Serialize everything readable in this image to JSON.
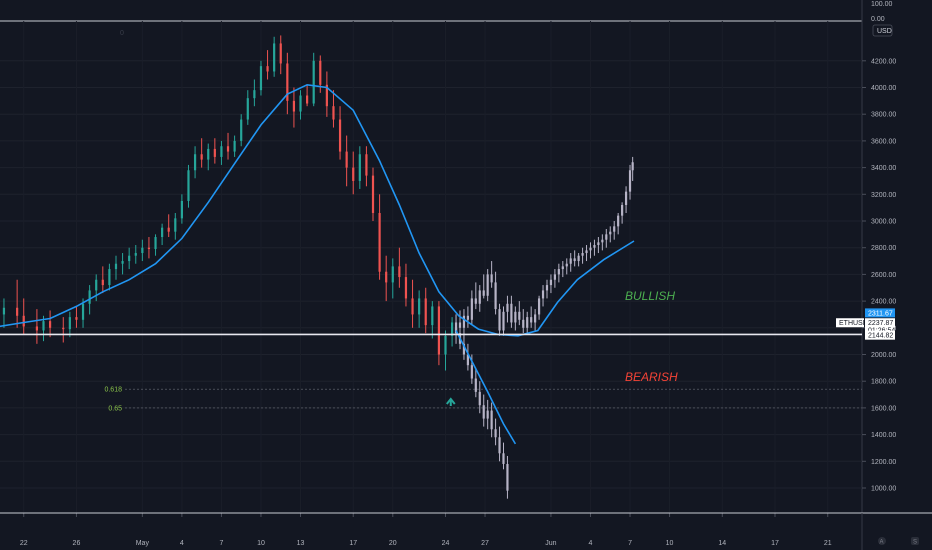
{
  "chart_data": {
    "type": "candlestick",
    "symbol": "ETHUSD",
    "currency": "USD",
    "ylim": [
      860,
      4480
    ],
    "y_ticks": [
      "1000.00",
      "1200.00",
      "1400.00",
      "1600.00",
      "1800.00",
      "2000.00",
      "2200.00",
      "2400.00",
      "2600.00",
      "2800.00",
      "3000.00",
      "3200.00",
      "3400.00",
      "3600.00",
      "3800.00",
      "4000.00",
      "4200.00"
    ],
    "y_ticks_values": [
      1000,
      1200,
      1400,
      1600,
      1800,
      2000,
      2200,
      2400,
      2600,
      2800,
      3000,
      3200,
      3400,
      3600,
      3800,
      4000,
      4200
    ],
    "top_pane_ticks": [
      "100.00",
      "0.00"
    ],
    "x_ticks": [
      "22",
      "26",
      "May",
      "4",
      "7",
      "10",
      "13",
      "17",
      "20",
      "24",
      "27",
      "Jun",
      "4",
      "7",
      "10",
      "14",
      "17",
      "21"
    ],
    "x_tick_days": [
      -9,
      -5,
      0,
      3,
      6,
      9,
      12,
      16,
      19,
      23,
      26,
      31,
      34,
      37,
      40,
      44,
      48,
      52
    ],
    "x_range_days": [
      -10.8,
      54.6
    ],
    "price_line": 2150,
    "price_labels": {
      "ma": "2311.67",
      "symbol": "ETHUSD",
      "last": "2237.87",
      "countdown": "01:26:54",
      "level": "2144.82"
    },
    "fib_levels": [
      {
        "label": "0.618",
        "value": 1740
      },
      {
        "label": "0.65",
        "value": 1600
      }
    ],
    "annotations": {
      "bullish": "BULLISH",
      "bearish": "BEARISH"
    },
    "top_pane_zero": "0",
    "colors": {
      "up": "#26a69a",
      "down": "#ef5350",
      "projection": "#b7b4c7",
      "ma": "#2196f3",
      "bullish": "#4caf50",
      "bearish": "#f44336",
      "arrow": "#26a69a",
      "background": "#131722"
    },
    "ohlc_daily": [
      [
        -11.5,
        2210,
        2360,
        2080,
        2300
      ],
      [
        -10.5,
        2300,
        2420,
        2200,
        2350
      ],
      [
        -9.5,
        2350,
        2560,
        2200,
        2290
      ],
      [
        -9,
        2290,
        2420,
        2150,
        2210
      ],
      [
        -8,
        2210,
        2340,
        2080,
        2180
      ],
      [
        -7.5,
        2180,
        2290,
        2100,
        2250
      ],
      [
        -7,
        2250,
        2330,
        2130,
        2200
      ],
      [
        -6,
        2200,
        2280,
        2090,
        2190
      ],
      [
        -5.5,
        2190,
        2320,
        2130,
        2280
      ],
      [
        -5,
        2280,
        2360,
        2200,
        2260
      ],
      [
        -4.5,
        2260,
        2420,
        2200,
        2380
      ],
      [
        -4,
        2380,
        2520,
        2300,
        2480
      ],
      [
        -3.5,
        2480,
        2600,
        2400,
        2560
      ],
      [
        -3,
        2560,
        2660,
        2460,
        2520
      ],
      [
        -2.5,
        2520,
        2680,
        2480,
        2640
      ],
      [
        -2,
        2640,
        2740,
        2560,
        2680
      ],
      [
        -1.5,
        2680,
        2760,
        2600,
        2700
      ],
      [
        -1,
        2700,
        2800,
        2640,
        2740
      ],
      [
        -0.5,
        2740,
        2820,
        2680,
        2760
      ],
      [
        0,
        2760,
        2860,
        2700,
        2800
      ],
      [
        0.5,
        2800,
        2880,
        2720,
        2790
      ],
      [
        1,
        2790,
        2900,
        2740,
        2880
      ],
      [
        1.5,
        2880,
        2980,
        2820,
        2950
      ],
      [
        2,
        2950,
        3050,
        2880,
        2920
      ],
      [
        2.5,
        2920,
        3060,
        2860,
        3020
      ],
      [
        3,
        3020,
        3200,
        2980,
        3150
      ],
      [
        3.5,
        3150,
        3420,
        3100,
        3380
      ],
      [
        4,
        3380,
        3560,
        3320,
        3500
      ],
      [
        4.5,
        3500,
        3620,
        3400,
        3460
      ],
      [
        5,
        3460,
        3580,
        3380,
        3540
      ],
      [
        5.5,
        3540,
        3620,
        3430,
        3480
      ],
      [
        6,
        3480,
        3600,
        3420,
        3560
      ],
      [
        6.5,
        3560,
        3660,
        3460,
        3520
      ],
      [
        7,
        3520,
        3640,
        3480,
        3600
      ],
      [
        7.5,
        3600,
        3800,
        3560,
        3760
      ],
      [
        8,
        3760,
        3980,
        3720,
        3920
      ],
      [
        8.5,
        3920,
        4060,
        3860,
        3980
      ],
      [
        9,
        3980,
        4200,
        3940,
        4160
      ],
      [
        9.5,
        4160,
        4280,
        4060,
        4120
      ],
      [
        10,
        4120,
        4380,
        4080,
        4330
      ],
      [
        10.5,
        4330,
        4390,
        4100,
        4180
      ],
      [
        11,
        4180,
        4260,
        3800,
        3900
      ],
      [
        11.5,
        3900,
        4000,
        3700,
        3820
      ],
      [
        12,
        3820,
        3980,
        3760,
        3940
      ],
      [
        12.5,
        3940,
        4020,
        3860,
        3880
      ],
      [
        13,
        3880,
        4260,
        3860,
        4200
      ],
      [
        13.5,
        4200,
        4240,
        3960,
        4020
      ],
      [
        14,
        4020,
        4120,
        3780,
        3860
      ],
      [
        14.5,
        3860,
        3980,
        3700,
        3760
      ],
      [
        15,
        3760,
        3860,
        3460,
        3520
      ],
      [
        15.5,
        3520,
        3640,
        3260,
        3400
      ],
      [
        16,
        3400,
        3520,
        3200,
        3300
      ],
      [
        16.5,
        3300,
        3560,
        3240,
        3500
      ],
      [
        17,
        3500,
        3560,
        3260,
        3340
      ],
      [
        17.5,
        3340,
        3400,
        3000,
        3060
      ],
      [
        18,
        3060,
        3200,
        2560,
        2620
      ],
      [
        18.5,
        2620,
        2740,
        2400,
        2540
      ],
      [
        19,
        2540,
        2720,
        2420,
        2660
      ],
      [
        19.5,
        2660,
        2800,
        2500,
        2580
      ],
      [
        20,
        2580,
        2680,
        2360,
        2420
      ],
      [
        20.5,
        2420,
        2560,
        2200,
        2300
      ],
      [
        21,
        2300,
        2480,
        2200,
        2420
      ],
      [
        21.5,
        2420,
        2500,
        2160,
        2220
      ],
      [
        22,
        2220,
        2400,
        2120,
        2360
      ],
      [
        22.5,
        2360,
        2400,
        1920,
        2000
      ],
      [
        23,
        2000,
        2180,
        1880,
        2140
      ],
      [
        23.5,
        2140,
        2280,
        2060,
        2240
      ]
    ],
    "ohlc_projection": [
      [
        23.8,
        2160,
        2300,
        2080,
        2240
      ],
      [
        24.1,
        2240,
        2330,
        2160,
        2200
      ],
      [
        24.4,
        2200,
        2340,
        2120,
        2290
      ],
      [
        24.7,
        2290,
        2360,
        2200,
        2260
      ],
      [
        25,
        2260,
        2480,
        2220,
        2420
      ],
      [
        25.3,
        2420,
        2540,
        2340,
        2380
      ],
      [
        25.6,
        2380,
        2520,
        2320,
        2480
      ],
      [
        25.9,
        2480,
        2600,
        2420,
        2440
      ],
      [
        26.2,
        2440,
        2640,
        2400,
        2600
      ],
      [
        26.5,
        2600,
        2700,
        2500,
        2540
      ],
      [
        26.8,
        2540,
        2620,
        2300,
        2340
      ],
      [
        27.1,
        2340,
        2380,
        2140,
        2180
      ],
      [
        27.4,
        2180,
        2360,
        2140,
        2320
      ],
      [
        27.7,
        2320,
        2440,
        2240,
        2380
      ],
      [
        28,
        2380,
        2440,
        2200,
        2240
      ],
      [
        28.3,
        2240,
        2360,
        2180,
        2320
      ],
      [
        28.6,
        2320,
        2400,
        2220,
        2260
      ],
      [
        28.9,
        2260,
        2340,
        2160,
        2200
      ],
      [
        29.2,
        2200,
        2320,
        2160,
        2280
      ],
      [
        29.5,
        2280,
        2360,
        2200,
        2240
      ],
      [
        29.8,
        2240,
        2340,
        2180,
        2300
      ],
      [
        30.1,
        2300,
        2440,
        2260,
        2420
      ],
      [
        30.4,
        2420,
        2520,
        2360,
        2480
      ],
      [
        30.7,
        2480,
        2560,
        2420,
        2520
      ],
      [
        31,
        2520,
        2600,
        2460,
        2560
      ],
      [
        31.3,
        2560,
        2640,
        2500,
        2600
      ],
      [
        31.6,
        2600,
        2680,
        2540,
        2640
      ],
      [
        31.9,
        2640,
        2700,
        2580,
        2660
      ],
      [
        32.2,
        2660,
        2720,
        2600,
        2680
      ],
      [
        32.5,
        2680,
        2760,
        2620,
        2720
      ],
      [
        32.8,
        2720,
        2780,
        2660,
        2700
      ],
      [
        33.1,
        2700,
        2760,
        2660,
        2740
      ],
      [
        33.4,
        2740,
        2800,
        2680,
        2760
      ],
      [
        33.7,
        2760,
        2820,
        2700,
        2780
      ],
      [
        34,
        2780,
        2840,
        2720,
        2800
      ],
      [
        34.3,
        2800,
        2860,
        2740,
        2820
      ],
      [
        34.6,
        2820,
        2880,
        2760,
        2840
      ],
      [
        34.9,
        2840,
        2900,
        2780,
        2860
      ],
      [
        35.2,
        2860,
        2940,
        2800,
        2900
      ],
      [
        35.5,
        2900,
        2960,
        2840,
        2920
      ],
      [
        35.8,
        2920,
        3000,
        2860,
        2960
      ],
      [
        36.1,
        2960,
        3060,
        2900,
        3040
      ],
      [
        36.4,
        3040,
        3140,
        2980,
        3120
      ],
      [
        36.7,
        3120,
        3260,
        3060,
        3220
      ],
      [
        37,
        3220,
        3420,
        3160,
        3380
      ],
      [
        37.2,
        3380,
        3480,
        3300,
        3440
      ]
    ],
    "ohlc_bearish_path": [
      [
        23.8,
        2200,
        2300,
        2120,
        2160
      ],
      [
        24.1,
        2160,
        2220,
        2040,
        2080
      ],
      [
        24.4,
        2080,
        2160,
        1960,
        2000
      ],
      [
        24.7,
        2000,
        2080,
        1880,
        1920
      ],
      [
        25,
        1920,
        2000,
        1780,
        1820
      ],
      [
        25.3,
        1820,
        1900,
        1680,
        1720
      ],
      [
        25.6,
        1720,
        1800,
        1560,
        1620
      ],
      [
        25.9,
        1620,
        1700,
        1460,
        1520
      ],
      [
        26.2,
        1520,
        1660,
        1440,
        1580
      ],
      [
        26.5,
        1580,
        1640,
        1380,
        1440
      ],
      [
        26.8,
        1440,
        1520,
        1320,
        1380
      ],
      [
        27.1,
        1380,
        1460,
        1200,
        1260
      ],
      [
        27.4,
        1260,
        1340,
        1140,
        1180
      ],
      [
        27.7,
        1180,
        1240,
        920,
        980
      ]
    ],
    "ma_line": [
      [
        -11.5,
        2200
      ],
      [
        -9,
        2240
      ],
      [
        -7,
        2270
      ],
      [
        -5,
        2360
      ],
      [
        -3,
        2470
      ],
      [
        -1,
        2560
      ],
      [
        1,
        2680
      ],
      [
        3,
        2870
      ],
      [
        5,
        3140
      ],
      [
        7,
        3430
      ],
      [
        9,
        3720
      ],
      [
        11,
        3950
      ],
      [
        12.5,
        4020
      ],
      [
        14,
        4000
      ],
      [
        16,
        3830
      ],
      [
        18,
        3450
      ],
      [
        19.5,
        3120
      ],
      [
        21,
        2760
      ],
      [
        22.5,
        2470
      ],
      [
        24,
        2290
      ],
      [
        25.5,
        2190
      ],
      [
        27,
        2150
      ],
      [
        28.5,
        2140
      ],
      [
        30,
        2180
      ],
      [
        31.5,
        2390
      ],
      [
        33,
        2560
      ],
      [
        35,
        2710
      ],
      [
        37.3,
        2850
      ]
    ],
    "bearish_ma_line": [
      [
        23.8,
        2180
      ],
      [
        25,
        1950
      ],
      [
        26.2,
        1720
      ],
      [
        27.4,
        1480
      ],
      [
        28.3,
        1330
      ]
    ]
  }
}
